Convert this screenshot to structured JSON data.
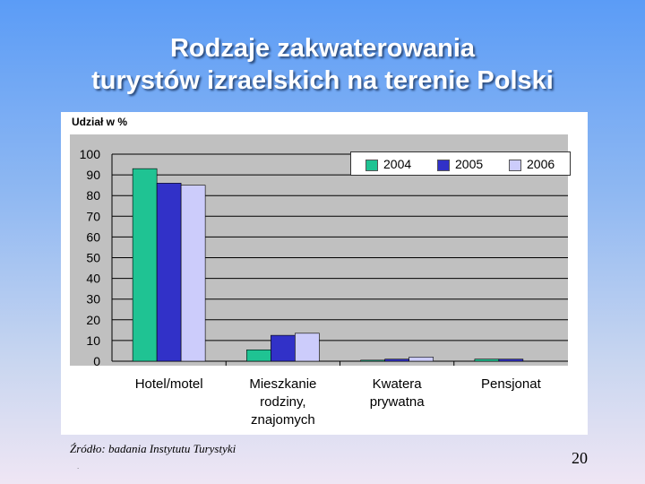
{
  "title_line1": "Rodzaje zakwaterowania",
  "title_line2": "turystów izraelskich na terenie Polski",
  "source_note": "Źródło: badania Instytutu Turystyki",
  "page_number": "20",
  "colors": {
    "background_top": "#5b9cf6",
    "background_bottom": "#efe6f4",
    "plot_bg": "#c0c0c0"
  },
  "chart_data": {
    "type": "bar",
    "unit_label": "Udział w %",
    "categories": [
      [
        "Hotel/motel"
      ],
      [
        "Mieszkanie",
        "rodziny,",
        "znajomych"
      ],
      [
        "Kwatera",
        "prywatna"
      ],
      [
        "Pensjonat"
      ]
    ],
    "series": [
      {
        "name": "2004",
        "color": "#1fc393",
        "values": [
          93,
          5.5,
          0.5,
          1
        ]
      },
      {
        "name": "2005",
        "color": "#3131c8",
        "values": [
          86,
          12.5,
          1,
          1
        ]
      },
      {
        "name": "2006",
        "color": "#ccccfb",
        "values": [
          85,
          13.5,
          2,
          0
        ]
      }
    ],
    "ylim": [
      0,
      100
    ],
    "y_ticks": [
      0,
      10,
      20,
      30,
      40,
      50,
      60,
      70,
      80,
      90,
      100
    ],
    "grid": true,
    "legend_position": "top-right"
  }
}
